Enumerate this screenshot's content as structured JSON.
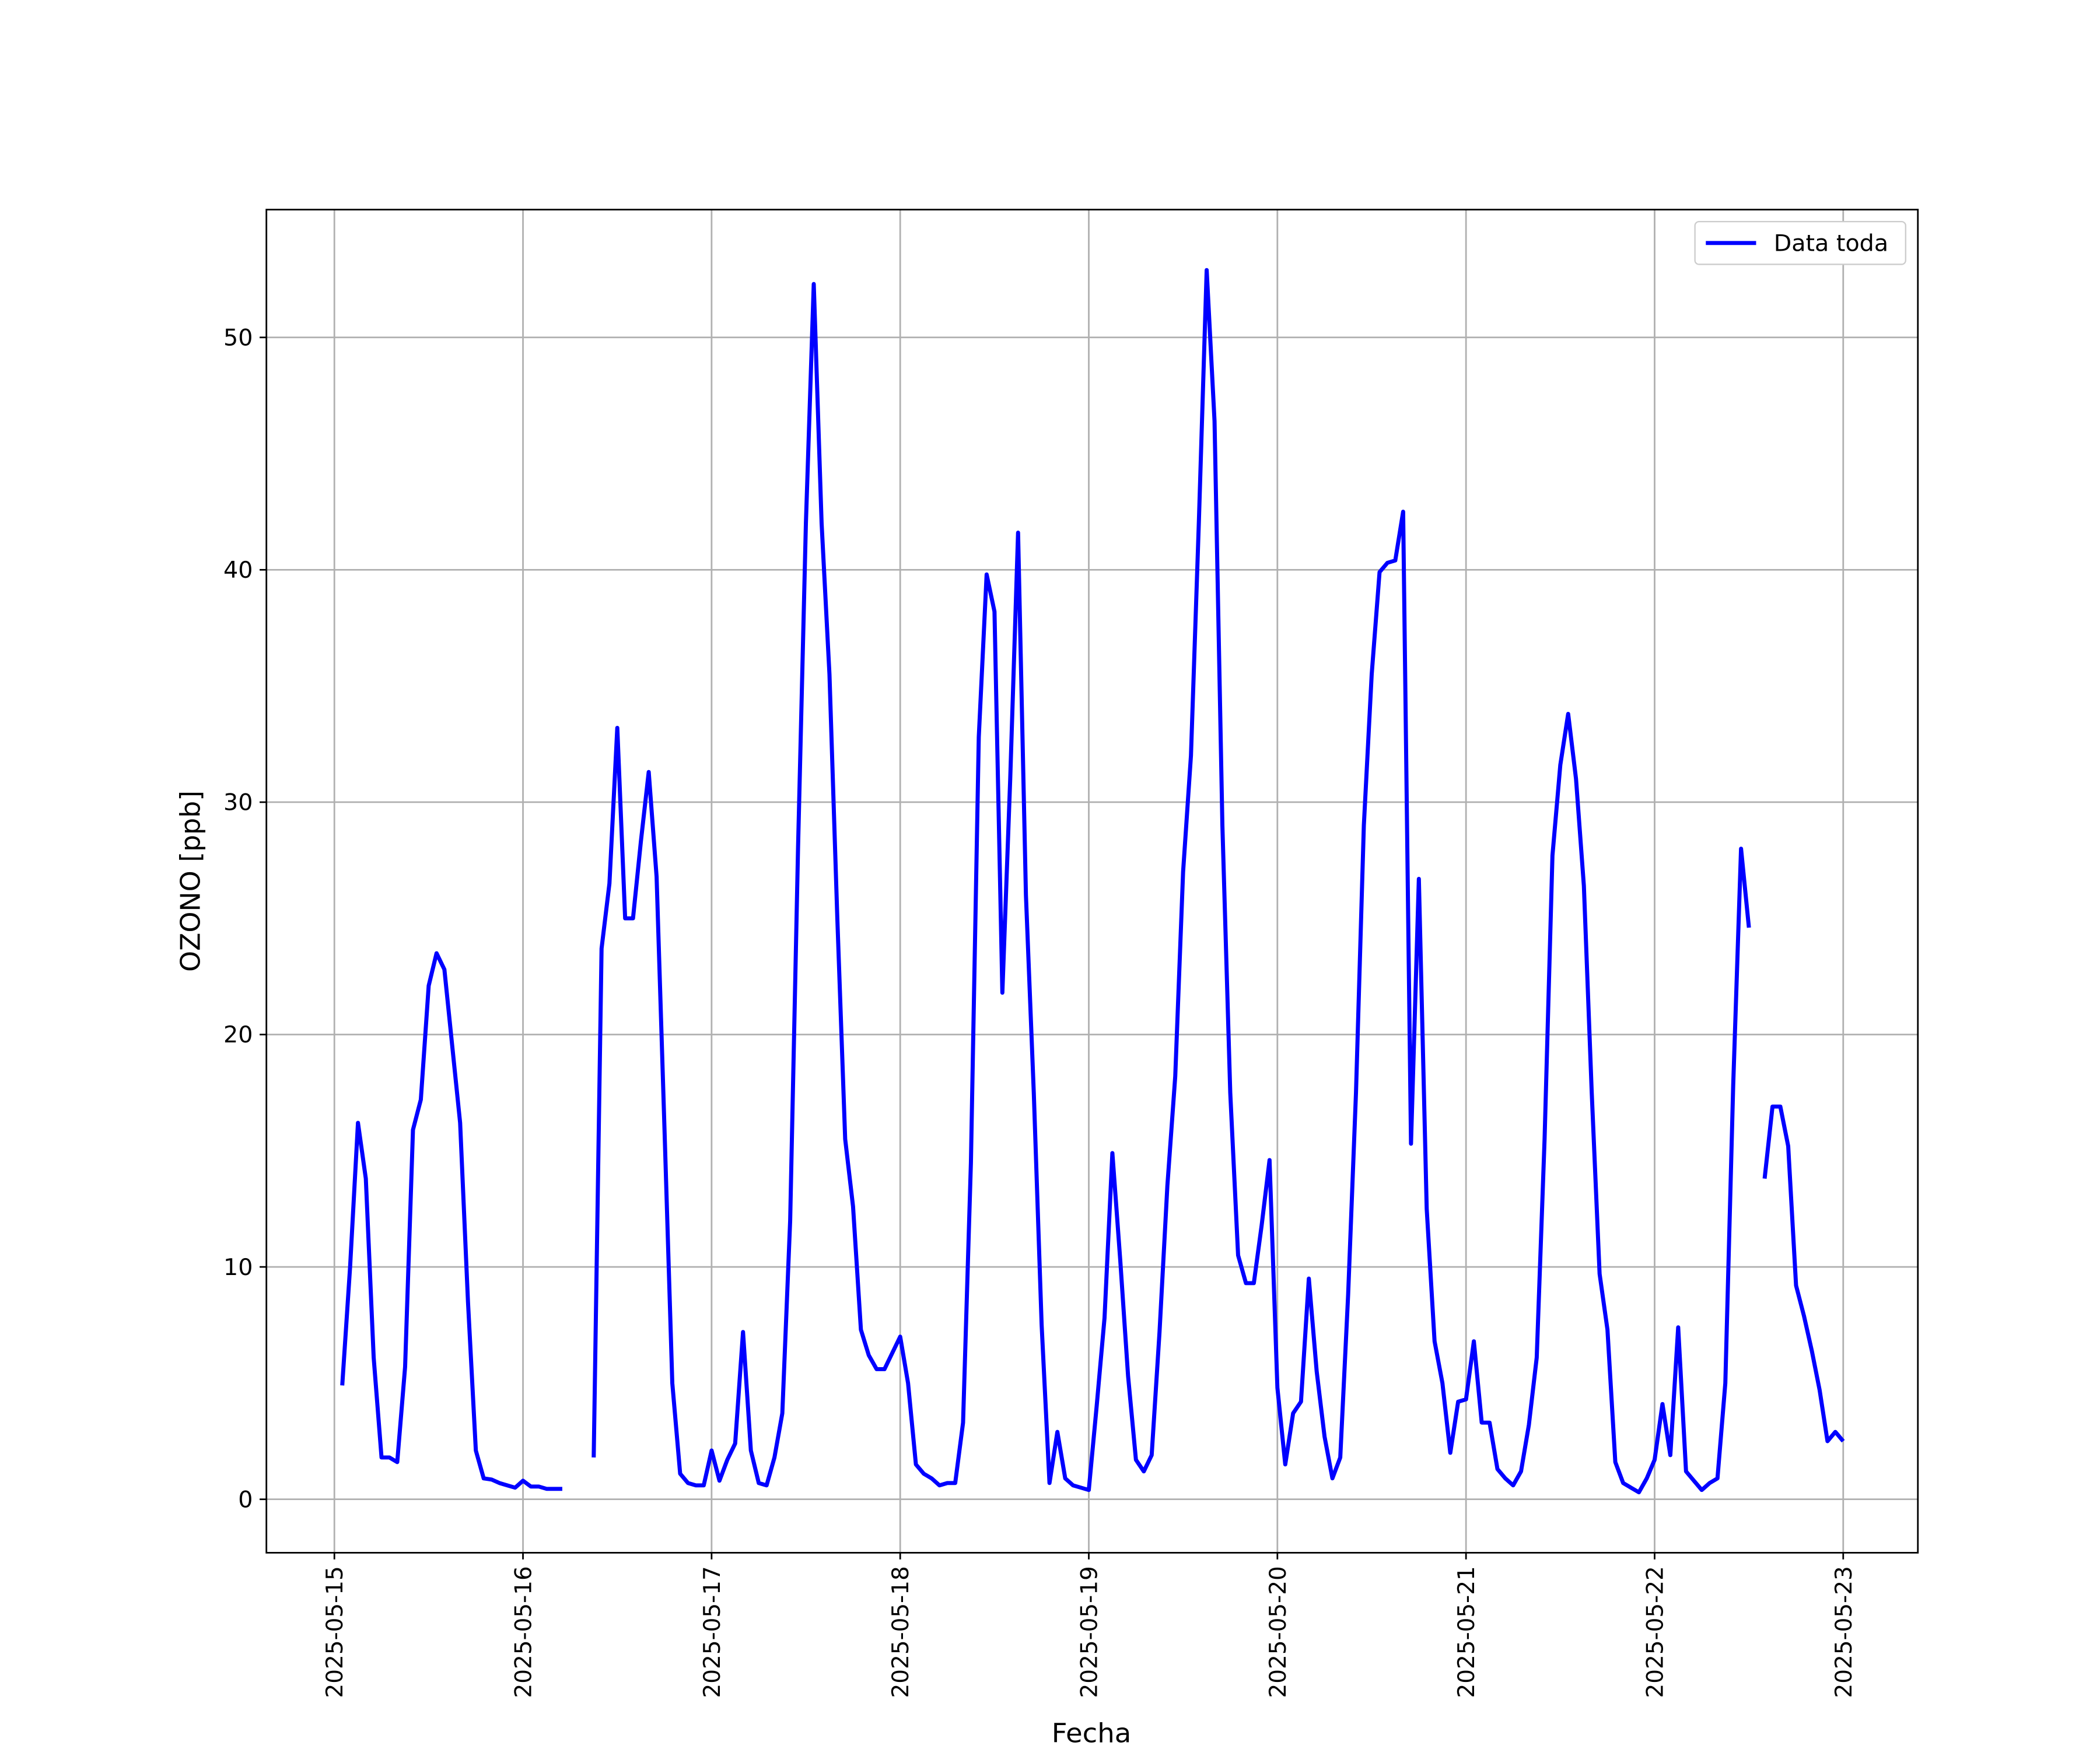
{
  "chart_data": {
    "type": "line",
    "xlabel": "Fecha",
    "ylabel": "OZONO [ppb]",
    "x": [
      "2025-05-15 01:00",
      "2025-05-15 02:00",
      "2025-05-15 03:00",
      "2025-05-15 04:00",
      "2025-05-15 05:00",
      "2025-05-15 06:00",
      "2025-05-15 07:00",
      "2025-05-15 08:00",
      "2025-05-15 09:00",
      "2025-05-15 10:00",
      "2025-05-15 11:00",
      "2025-05-15 12:00",
      "2025-05-15 13:00",
      "2025-05-15 14:00",
      "2025-05-15 15:00",
      "2025-05-15 16:00",
      "2025-05-15 17:00",
      "2025-05-15 18:00",
      "2025-05-15 19:00",
      "2025-05-15 20:00",
      "2025-05-15 21:00",
      "2025-05-15 22:00",
      "2025-05-15 23:00",
      "2025-05-16 00:00",
      "2025-05-16 01:00",
      "2025-05-16 02:00",
      "2025-05-16 03:00",
      "2025-05-16 04:00",
      "2025-05-16 05:00",
      "2025-05-16 06:00",
      "2025-05-16 07:00",
      "2025-05-16 08:00",
      "2025-05-16 09:00",
      "2025-05-16 10:00",
      "2025-05-16 11:00",
      "2025-05-16 12:00",
      "2025-05-16 13:00",
      "2025-05-16 14:00",
      "2025-05-16 15:00",
      "2025-05-16 16:00",
      "2025-05-16 17:00",
      "2025-05-16 18:00",
      "2025-05-16 19:00",
      "2025-05-16 20:00",
      "2025-05-16 21:00",
      "2025-05-16 22:00",
      "2025-05-16 23:00",
      "2025-05-17 00:00",
      "2025-05-17 01:00",
      "2025-05-17 02:00",
      "2025-05-17 03:00",
      "2025-05-17 04:00",
      "2025-05-17 05:00",
      "2025-05-17 06:00",
      "2025-05-17 07:00",
      "2025-05-17 08:00",
      "2025-05-17 09:00",
      "2025-05-17 10:00",
      "2025-05-17 11:00",
      "2025-05-17 12:00",
      "2025-05-17 13:00",
      "2025-05-17 14:00",
      "2025-05-17 15:00",
      "2025-05-17 16:00",
      "2025-05-17 17:00",
      "2025-05-17 18:00",
      "2025-05-17 19:00",
      "2025-05-17 20:00",
      "2025-05-17 21:00",
      "2025-05-17 22:00",
      "2025-05-17 23:00",
      "2025-05-18 00:00",
      "2025-05-18 01:00",
      "2025-05-18 02:00",
      "2025-05-18 03:00",
      "2025-05-18 04:00",
      "2025-05-18 05:00",
      "2025-05-18 06:00",
      "2025-05-18 07:00",
      "2025-05-18 08:00",
      "2025-05-18 09:00",
      "2025-05-18 10:00",
      "2025-05-18 11:00",
      "2025-05-18 12:00",
      "2025-05-18 13:00",
      "2025-05-18 14:00",
      "2025-05-18 15:00",
      "2025-05-18 16:00",
      "2025-05-18 17:00",
      "2025-05-18 18:00",
      "2025-05-18 19:00",
      "2025-05-18 20:00",
      "2025-05-18 21:00",
      "2025-05-18 22:00",
      "2025-05-18 23:00",
      "2025-05-19 00:00",
      "2025-05-19 01:00",
      "2025-05-19 02:00",
      "2025-05-19 03:00",
      "2025-05-19 04:00",
      "2025-05-19 05:00",
      "2025-05-19 06:00",
      "2025-05-19 07:00",
      "2025-05-19 08:00",
      "2025-05-19 09:00",
      "2025-05-19 10:00",
      "2025-05-19 11:00",
      "2025-05-19 12:00",
      "2025-05-19 13:00",
      "2025-05-19 14:00",
      "2025-05-19 15:00",
      "2025-05-19 16:00",
      "2025-05-19 17:00",
      "2025-05-19 18:00",
      "2025-05-19 19:00",
      "2025-05-19 20:00",
      "2025-05-19 21:00",
      "2025-05-19 22:00",
      "2025-05-19 23:00",
      "2025-05-20 00:00",
      "2025-05-20 01:00",
      "2025-05-20 02:00",
      "2025-05-20 03:00",
      "2025-05-20 04:00",
      "2025-05-20 05:00",
      "2025-05-20 06:00",
      "2025-05-20 07:00",
      "2025-05-20 08:00",
      "2025-05-20 09:00",
      "2025-05-20 10:00",
      "2025-05-20 11:00",
      "2025-05-20 12:00",
      "2025-05-20 13:00",
      "2025-05-20 14:00",
      "2025-05-20 15:00",
      "2025-05-20 16:00",
      "2025-05-20 17:00",
      "2025-05-20 18:00",
      "2025-05-20 19:00",
      "2025-05-20 20:00",
      "2025-05-20 21:00",
      "2025-05-20 22:00",
      "2025-05-20 23:00",
      "2025-05-21 00:00",
      "2025-05-21 01:00",
      "2025-05-21 02:00",
      "2025-05-21 03:00",
      "2025-05-21 04:00",
      "2025-05-21 05:00",
      "2025-05-21 06:00",
      "2025-05-21 07:00",
      "2025-05-21 08:00",
      "2025-05-21 09:00",
      "2025-05-21 10:00",
      "2025-05-21 11:00",
      "2025-05-21 12:00",
      "2025-05-21 13:00",
      "2025-05-21 14:00",
      "2025-05-21 15:00",
      "2025-05-21 16:00",
      "2025-05-21 17:00",
      "2025-05-21 18:00",
      "2025-05-21 19:00",
      "2025-05-21 20:00",
      "2025-05-21 21:00",
      "2025-05-21 22:00",
      "2025-05-21 23:00",
      "2025-05-22 00:00",
      "2025-05-22 01:00",
      "2025-05-22 02:00",
      "2025-05-22 03:00",
      "2025-05-22 04:00",
      "2025-05-22 05:00",
      "2025-05-22 06:00",
      "2025-05-22 07:00",
      "2025-05-22 08:00",
      "2025-05-22 09:00",
      "2025-05-22 10:00",
      "2025-05-22 11:00",
      "2025-05-22 12:00",
      "2025-05-22 13:00",
      "2025-05-22 14:00",
      "2025-05-22 15:00",
      "2025-05-22 16:00",
      "2025-05-22 17:00",
      "2025-05-22 18:00",
      "2025-05-22 19:00",
      "2025-05-22 20:00",
      "2025-05-22 21:00",
      "2025-05-22 22:00",
      "2025-05-22 23:00",
      "2025-05-23 00:00"
    ],
    "series": [
      {
        "name": "Data toda",
        "color": "#0000ff",
        "values": [
          4.9,
          10,
          16.2,
          13.8,
          6.1,
          1.8,
          1.8,
          1.6,
          5.7,
          15.9,
          17.2,
          22.1,
          23.5,
          22.8,
          19.5,
          16.2,
          8.5,
          2.1,
          0.9,
          0.85,
          0.7,
          0.6,
          0.5,
          0.8,
          0.55,
          0.55,
          0.45,
          0.45,
          0.45,
          null,
          null,
          null,
          1.8,
          23.7,
          26.5,
          33.2,
          25,
          25,
          28.3,
          31.3,
          26.8,
          16,
          5,
          1.1,
          0.7,
          0.6,
          0.6,
          2.1,
          0.8,
          1.7,
          2.4,
          7.2,
          2.1,
          0.7,
          0.6,
          1.8,
          3.7,
          12,
          28,
          42,
          52.3,
          42,
          35.5,
          25,
          15.5,
          12.6,
          7.3,
          6.2,
          5.6,
          5.6,
          6.3,
          7,
          5,
          1.5,
          1.1,
          0.9,
          0.6,
          0.7,
          0.7,
          3.3,
          14.5,
          32.8,
          39.8,
          38.2,
          21.8,
          31,
          41.6,
          26,
          17.5,
          7.5,
          0.7,
          2.9,
          0.9,
          0.6,
          0.5,
          0.4,
          4,
          7.8,
          14.9,
          10.3,
          5.3,
          1.7,
          1.2,
          1.9,
          7.2,
          13.5,
          18.2,
          27,
          32,
          42,
          52.9,
          46.4,
          29,
          17.5,
          10.5,
          9.3,
          9.3,
          11.8,
          14.6,
          4.8,
          1.5,
          3.7,
          4.2,
          9.5,
          5.5,
          2.7,
          0.9,
          1.8,
          8.8,
          17.5,
          29,
          35.5,
          39.9,
          40.3,
          40.4,
          42.5,
          15.3,
          26.7,
          12.5,
          6.8,
          5,
          2,
          4.2,
          4.3,
          6.8,
          3.3,
          3.3,
          1.3,
          0.9,
          0.6,
          1.2,
          3.2,
          6.1,
          15.5,
          27.7,
          31.6,
          33.8,
          31,
          26.4,
          17.5,
          9.7,
          7.3,
          1.6,
          0.7,
          0.5,
          0.3,
          0.9,
          1.7,
          4.1,
          1.9,
          7.4,
          1.2,
          0.8,
          0.4,
          0.7,
          0.9,
          5,
          17.8,
          28,
          24.6,
          null,
          13.8,
          16.9,
          16.9,
          15.2,
          9.2,
          7.9,
          6.4,
          4.7,
          2.5,
          2.9,
          2.5
        ]
      }
    ],
    "xlim": [
      "2025-05-14 15:21",
      "2025-05-23 09:30"
    ],
    "xticks": [
      "2025-05-15",
      "2025-05-16",
      "2025-05-17",
      "2025-05-18",
      "2025-05-19",
      "2025-05-20",
      "2025-05-21",
      "2025-05-22",
      "2025-05-23"
    ],
    "ylim": [
      -2.3,
      55.5
    ],
    "yticks": [
      0,
      10,
      20,
      30,
      40,
      50
    ],
    "grid": true,
    "legend": "upper right"
  }
}
